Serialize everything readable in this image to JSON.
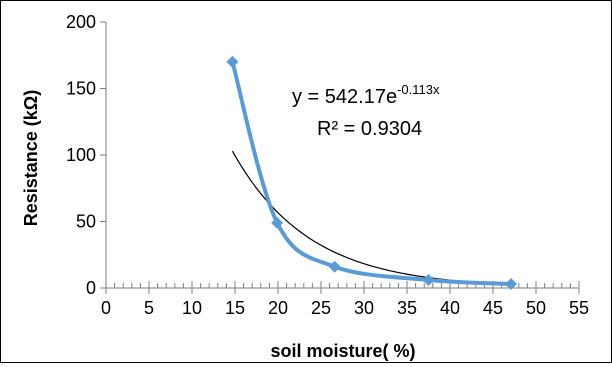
{
  "chart_data": {
    "type": "scatter",
    "title": "",
    "xlabel": "soil moisture( %)",
    "ylabel": "Resistance (kΩ)",
    "xlim": [
      0,
      55
    ],
    "ylim": [
      0,
      200
    ],
    "xticks": [
      0,
      5,
      10,
      15,
      20,
      25,
      30,
      35,
      40,
      45,
      50,
      55
    ],
    "yticks": [
      0,
      50,
      100,
      150,
      200
    ],
    "grid": false,
    "legend": "none",
    "series": [
      {
        "values": [
          {
            "x": 14.7,
            "y": 170
          },
          {
            "x": 19.9,
            "y": 49
          },
          {
            "x": 26.6,
            "y": 16
          },
          {
            "x": 37.5,
            "y": 6
          },
          {
            "x": 47.1,
            "y": 3
          }
        ],
        "style": "smoothed-line-with-diamond-markers",
        "color": "#5b9bd5"
      }
    ],
    "trendline": {
      "type": "exponential",
      "a": 542.17,
      "b": -0.113,
      "x_range": [
        14.7,
        47.1
      ],
      "color": "#000000"
    },
    "annotations": {
      "equation_prefix": "y = 542.17e",
      "equation_exponent": "-0.113x",
      "r_squared": "R² = 0.9304"
    }
  }
}
